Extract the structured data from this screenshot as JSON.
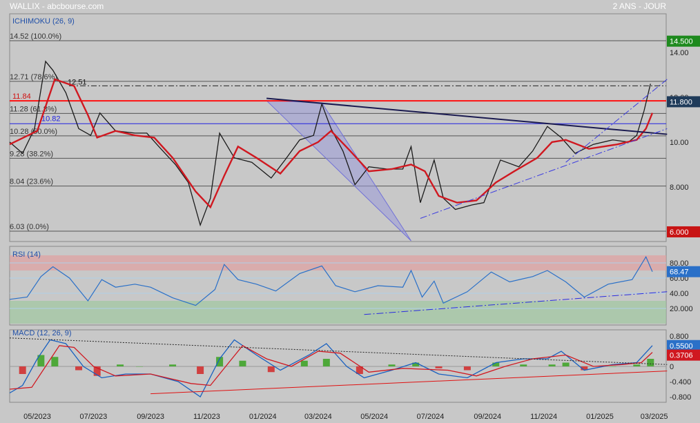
{
  "header": {
    "symbol": "WALLIX - abcbourse.com",
    "period": "2 ANS - JOUR"
  },
  "colors": {
    "background": "#c8c8c8",
    "price_line": "#1a1a1a",
    "ichimoku_line": "#d01820",
    "triangle_fill": "#9a9ad8",
    "rsi_line": "#2a70c8",
    "macd_line": "#1860c0",
    "signal_line": "#d01820",
    "hist_pos": "#4ea83a",
    "hist_neg": "#d04040",
    "resistance": "#ff1010",
    "blue_level": "#2020e0",
    "dark_trend": "#1a1a50"
  },
  "chart_data": [
    {
      "type": "line",
      "panel": "price",
      "indicator_label": "ICHIMOKU (26, 9)",
      "ylim": [
        6.0,
        14.52
      ],
      "x_ticks": [
        "05/2023",
        "07/2023",
        "09/2023",
        "11/2023",
        "01/2024",
        "03/2024",
        "05/2024",
        "07/2024",
        "09/2024",
        "11/2024",
        "01/2025",
        "03/2025"
      ],
      "y_ticks": [
        "14.00",
        "12.00",
        "10.00",
        "8.000"
      ],
      "fibonacci_levels": [
        {
          "label": "14.52  (100.0%)",
          "value": 14.52
        },
        {
          "label": "12.71  (78.6%)",
          "value": 12.71
        },
        {
          "label": "11.28  (61.8%)",
          "value": 11.28
        },
        {
          "label": "10.28  (50.0%)",
          "value": 10.28
        },
        {
          "label": "9.28  (38.2%)",
          "value": 9.28
        },
        {
          "label": "8.04  (23.6%)",
          "value": 8.04
        },
        {
          "label": "6.03  (0.0%)",
          "value": 6.03
        }
      ],
      "annotations": {
        "red_level": "11.84",
        "blue_level": "10.82",
        "dash_level": "12.51"
      },
      "price_badges": [
        {
          "label": "14.500",
          "value": 14.5,
          "color": "#1e8a1e"
        },
        {
          "label": "11.800",
          "value": 11.8,
          "color": "#1f3b5a"
        },
        {
          "label": "6.000",
          "value": 6.0,
          "color": "#c81414"
        }
      ],
      "close_series": [
        [
          "2023-04-01",
          10.0
        ],
        [
          "2023-04-15",
          9.5
        ],
        [
          "2023-04-28",
          10.6
        ],
        [
          "2023-05-10",
          13.6
        ],
        [
          "2023-05-18",
          13.2
        ],
        [
          "2023-06-01",
          12.2
        ],
        [
          "2023-06-15",
          10.6
        ],
        [
          "2023-06-28",
          10.3
        ],
        [
          "2023-07-08",
          11.3
        ],
        [
          "2023-07-25",
          10.5
        ],
        [
          "2023-08-15",
          10.4
        ],
        [
          "2023-08-28",
          10.4
        ],
        [
          "2023-09-10",
          9.8
        ],
        [
          "2023-09-28",
          9.0
        ],
        [
          "2023-10-12",
          8.2
        ],
        [
          "2023-10-25",
          6.3
        ],
        [
          "2023-11-05",
          7.5
        ],
        [
          "2023-11-15",
          10.4
        ],
        [
          "2023-12-01",
          9.3
        ],
        [
          "2023-12-20",
          9.1
        ],
        [
          "2024-01-10",
          8.4
        ],
        [
          "2024-01-25",
          9.2
        ],
        [
          "2024-02-10",
          10.1
        ],
        [
          "2024-02-25",
          10.3
        ],
        [
          "2024-03-05",
          11.7
        ],
        [
          "2024-03-15",
          10.6
        ],
        [
          "2024-03-28",
          9.6
        ],
        [
          "2024-04-10",
          8.1
        ],
        [
          "2024-04-25",
          8.9
        ],
        [
          "2024-05-15",
          8.8
        ],
        [
          "2024-06-01",
          8.8
        ],
        [
          "2024-06-10",
          9.8
        ],
        [
          "2024-06-20",
          7.3
        ],
        [
          "2024-07-05",
          9.2
        ],
        [
          "2024-07-15",
          7.5
        ],
        [
          "2024-07-28",
          7.0
        ],
        [
          "2024-08-15",
          7.2
        ],
        [
          "2024-08-28",
          7.3
        ],
        [
          "2024-09-15",
          9.2
        ],
        [
          "2024-10-05",
          8.9
        ],
        [
          "2024-10-20",
          9.6
        ],
        [
          "2024-11-05",
          10.7
        ],
        [
          "2024-11-20",
          10.2
        ],
        [
          "2024-12-05",
          9.5
        ],
        [
          "2024-12-25",
          9.9
        ],
        [
          "2025-01-15",
          10.1
        ],
        [
          "2025-02-01",
          10.0
        ],
        [
          "2025-02-10",
          10.3
        ],
        [
          "2025-02-18",
          11.4
        ],
        [
          "2025-02-25",
          12.6
        ]
      ],
      "ichimoku_series": [
        [
          "2023-04-01",
          9.9
        ],
        [
          "2023-05-01",
          10.5
        ],
        [
          "2023-05-20",
          12.8
        ],
        [
          "2023-06-10",
          12.5
        ],
        [
          "2023-06-25",
          11.2
        ],
        [
          "2023-07-05",
          10.2
        ],
        [
          "2023-07-25",
          10.5
        ],
        [
          "2023-08-15",
          10.3
        ],
        [
          "2023-09-05",
          10.2
        ],
        [
          "2023-09-25",
          9.3
        ],
        [
          "2023-10-20",
          7.8
        ],
        [
          "2023-11-05",
          7.1
        ],
        [
          "2023-11-20",
          8.5
        ],
        [
          "2023-12-05",
          9.8
        ],
        [
          "2023-12-25",
          9.3
        ],
        [
          "2024-01-20",
          8.6
        ],
        [
          "2024-02-10",
          9.6
        ],
        [
          "2024-03-01",
          10.0
        ],
        [
          "2024-03-15",
          10.5
        ],
        [
          "2024-04-05",
          9.6
        ],
        [
          "2024-04-25",
          8.7
        ],
        [
          "2024-05-20",
          8.8
        ],
        [
          "2024-06-10",
          9.0
        ],
        [
          "2024-06-25",
          8.7
        ],
        [
          "2024-07-10",
          7.6
        ],
        [
          "2024-07-30",
          7.3
        ],
        [
          "2024-08-20",
          7.4
        ],
        [
          "2024-09-10",
          8.2
        ],
        [
          "2024-09-30",
          8.7
        ],
        [
          "2024-10-25",
          9.3
        ],
        [
          "2024-11-10",
          10.0
        ],
        [
          "2024-11-25",
          10.1
        ],
        [
          "2024-12-20",
          9.7
        ],
        [
          "2025-01-20",
          9.9
        ],
        [
          "2025-02-10",
          10.1
        ],
        [
          "2025-02-20",
          10.6
        ],
        [
          "2025-02-27",
          11.3
        ]
      ],
      "chart_pattern": {
        "triangle_points": [
          [
            "2024-01-05",
            11.85
          ],
          [
            "2024-06-10",
            5.6
          ],
          [
            "2024-03-05",
            11.75
          ]
        ]
      },
      "trend_lines": [
        {
          "style": "solid",
          "from": [
            "2024-01-05",
            11.95
          ],
          "to": [
            "2025-03-15",
            10.35
          ]
        },
        {
          "style": "dash-dot",
          "from": [
            "2024-06-20",
            6.6
          ],
          "to": [
            "2025-03-15",
            10.6
          ]
        },
        {
          "style": "dash-dot",
          "from": [
            "2024-11-25",
            9.1
          ],
          "to": [
            "2025-03-15",
            12.8
          ]
        }
      ]
    },
    {
      "type": "line",
      "panel": "rsi",
      "indicator_label": "RSI (14)",
      "ylim": [
        0,
        100
      ],
      "y_ticks": [
        "80.00",
        "60.00",
        "40.00",
        "20.000"
      ],
      "zones": {
        "overbought": 70,
        "oversold": 30
      },
      "value_badge": {
        "label": "68.47",
        "value": 68.47
      },
      "series": [
        [
          "2023-04-01",
          32
        ],
        [
          "2023-04-20",
          35
        ],
        [
          "2023-05-05",
          62
        ],
        [
          "2023-05-18",
          75
        ],
        [
          "2023-06-05",
          60
        ],
        [
          "2023-06-25",
          30
        ],
        [
          "2023-07-10",
          58
        ],
        [
          "2023-07-25",
          48
        ],
        [
          "2023-08-15",
          52
        ],
        [
          "2023-09-01",
          48
        ],
        [
          "2023-09-25",
          34
        ],
        [
          "2023-10-20",
          24
        ],
        [
          "2023-11-10",
          45
        ],
        [
          "2023-11-20",
          78
        ],
        [
          "2023-12-05",
          58
        ],
        [
          "2023-12-25",
          52
        ],
        [
          "2024-01-15",
          43
        ],
        [
          "2024-02-10",
          66
        ],
        [
          "2024-03-05",
          76
        ],
        [
          "2024-03-20",
          50
        ],
        [
          "2024-04-10",
          42
        ],
        [
          "2024-05-05",
          50
        ],
        [
          "2024-06-01",
          48
        ],
        [
          "2024-06-10",
          70
        ],
        [
          "2024-06-22",
          35
        ],
        [
          "2024-07-05",
          56
        ],
        [
          "2024-07-15",
          27
        ],
        [
          "2024-08-10",
          42
        ],
        [
          "2024-09-05",
          68
        ],
        [
          "2024-09-25",
          55
        ],
        [
          "2024-10-20",
          62
        ],
        [
          "2024-11-05",
          70
        ],
        [
          "2024-11-25",
          55
        ],
        [
          "2024-12-15",
          35
        ],
        [
          "2025-01-10",
          52
        ],
        [
          "2025-02-05",
          58
        ],
        [
          "2025-02-20",
          88
        ],
        [
          "2025-02-27",
          68.47
        ]
      ],
      "trend_lines": [
        {
          "style": "dash-dot",
          "from": [
            "2024-04-20",
            12
          ],
          "to": [
            "2025-03-15",
            42
          ]
        }
      ]
    },
    {
      "type": "line",
      "panel": "macd",
      "indicator_label": "MACD (12, 26, 9)",
      "ylim": [
        -0.9,
        0.9
      ],
      "y_ticks": [
        "0.800",
        "0.400",
        "0",
        "-0.400",
        "-0.800"
      ],
      "value_badges": [
        {
          "label": "0.5500",
          "value": 0.55
        },
        {
          "label": "0.3706",
          "value": 0.3706
        }
      ],
      "macd_series": [
        [
          "2023-04-01",
          -0.7
        ],
        [
          "2023-04-15",
          -0.5
        ],
        [
          "2023-05-01",
          0.2
        ],
        [
          "2023-05-15",
          0.7
        ],
        [
          "2023-06-01",
          0.6
        ],
        [
          "2023-06-20",
          0.0
        ],
        [
          "2023-07-10",
          -0.3
        ],
        [
          "2023-08-05",
          -0.2
        ],
        [
          "2023-09-01",
          -0.2
        ],
        [
          "2023-10-01",
          -0.4
        ],
        [
          "2023-10-25",
          -0.8
        ],
        [
          "2023-11-15",
          0.2
        ],
        [
          "2023-12-01",
          0.7
        ],
        [
          "2023-12-25",
          0.3
        ],
        [
          "2024-01-20",
          -0.1
        ],
        [
          "2024-02-20",
          0.3
        ],
        [
          "2024-03-10",
          0.6
        ],
        [
          "2024-04-01",
          0.0
        ],
        [
          "2024-04-20",
          -0.3
        ],
        [
          "2024-05-20",
          -0.1
        ],
        [
          "2024-06-15",
          0.1
        ],
        [
          "2024-07-10",
          -0.2
        ],
        [
          "2024-08-10",
          -0.3
        ],
        [
          "2024-09-10",
          0.1
        ],
        [
          "2024-10-10",
          0.2
        ],
        [
          "2024-11-05",
          0.2
        ],
        [
          "2024-11-20",
          0.4
        ],
        [
          "2024-12-15",
          -0.1
        ],
        [
          "2025-01-15",
          0.05
        ],
        [
          "2025-02-10",
          0.1
        ],
        [
          "2025-02-27",
          0.55
        ]
      ],
      "signal_series": [
        [
          "2023-04-01",
          -0.6
        ],
        [
          "2023-04-25",
          -0.55
        ],
        [
          "2023-05-10",
          0.0
        ],
        [
          "2023-05-25",
          0.55
        ],
        [
          "2023-06-10",
          0.5
        ],
        [
          "2023-07-01",
          0.0
        ],
        [
          "2023-07-25",
          -0.25
        ],
        [
          "2023-09-01",
          -0.2
        ],
        [
          "2023-10-15",
          -0.45
        ],
        [
          "2023-11-05",
          -0.5
        ],
        [
          "2023-11-25",
          0.1
        ],
        [
          "2023-12-10",
          0.55
        ],
        [
          "2024-01-05",
          0.2
        ],
        [
          "2024-02-01",
          0.0
        ],
        [
          "2024-03-01",
          0.4
        ],
        [
          "2024-03-25",
          0.35
        ],
        [
          "2024-04-25",
          -0.15
        ],
        [
          "2024-06-01",
          -0.05
        ],
        [
          "2024-07-20",
          -0.1
        ],
        [
          "2024-08-20",
          -0.25
        ],
        [
          "2024-09-20",
          0.0
        ],
        [
          "2024-10-20",
          0.2
        ],
        [
          "2024-11-25",
          0.3
        ],
        [
          "2024-12-25",
          0.0
        ],
        [
          "2025-01-25",
          0.05
        ],
        [
          "2025-02-15",
          0.1
        ],
        [
          "2025-02-27",
          0.3706
        ]
      ],
      "histogram": [
        [
          "2023-04-15",
          -0.2
        ],
        [
          "2023-05-05",
          0.3
        ],
        [
          "2023-05-20",
          0.25
        ],
        [
          "2023-06-15",
          -0.1
        ],
        [
          "2023-07-05",
          -0.25
        ],
        [
          "2023-07-30",
          0.05
        ],
        [
          "2023-08-20",
          0.0
        ],
        [
          "2023-09-25",
          0.05
        ],
        [
          "2023-10-25",
          -0.2
        ],
        [
          "2023-11-15",
          0.25
        ],
        [
          "2023-12-10",
          0.15
        ],
        [
          "2024-01-10",
          -0.15
        ],
        [
          "2024-02-15",
          0.15
        ],
        [
          "2024-03-10",
          0.2
        ],
        [
          "2024-04-15",
          -0.2
        ],
        [
          "2024-05-20",
          0.05
        ],
        [
          "2024-06-15",
          0.1
        ],
        [
          "2024-07-10",
          -0.05
        ],
        [
          "2024-08-10",
          -0.1
        ],
        [
          "2024-09-10",
          0.1
        ],
        [
          "2024-10-10",
          0.05
        ],
        [
          "2024-11-10",
          0.05
        ],
        [
          "2024-11-25",
          0.1
        ],
        [
          "2024-12-15",
          -0.1
        ],
        [
          "2025-01-15",
          0.0
        ],
        [
          "2025-02-10",
          0.05
        ],
        [
          "2025-02-25",
          0.2
        ]
      ],
      "trend_lines": [
        {
          "style": "dotted",
          "from": [
            "2023-04-01",
            0.75
          ],
          "to": [
            "2025-03-15",
            0.05
          ]
        },
        {
          "style": "solid",
          "from": [
            "2023-09-01",
            -0.72
          ],
          "to": [
            "2025-03-15",
            -0.12
          ]
        }
      ]
    }
  ]
}
